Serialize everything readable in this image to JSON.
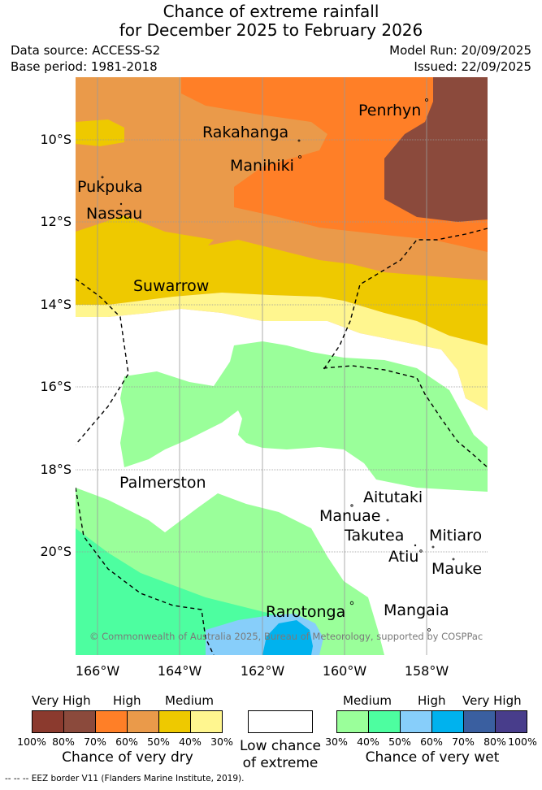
{
  "title": {
    "line1": "Chance of extreme rainfall",
    "line2": "for December 2025 to February 2026"
  },
  "meta": {
    "data_source": "Data source: ACCESS-S2",
    "base_period": "Base period: 1981-2018",
    "model_run": "Model Run: 20/09/2025",
    "issued": "Issued: 22/09/2025"
  },
  "axes": {
    "lat_labels": [
      "10°S",
      "12°S",
      "14°S",
      "16°S",
      "18°S",
      "20°S"
    ],
    "lon_labels": [
      "166°W",
      "164°W",
      "162°W",
      "160°W",
      "158°W"
    ]
  },
  "places": {
    "penrhyn": "Penrhyn",
    "rakahanga": "Rakahanga",
    "manihiki": "Manihiki",
    "pukpuka": "Pukpuka",
    "nassau": "Nassau",
    "suwarrow": "Suwarrow",
    "palmerston": "Palmerston",
    "aitutaki": "Aitutaki",
    "manuae": "Manuae",
    "takutea": "Takutea",
    "mitiaro": "Mitiaro",
    "atiu": "Atiu",
    "mauke": "Mauke",
    "rarotonga": "Rarotonga",
    "mangaia": "Mangaia"
  },
  "copyright": "© Commonwealth of Australia 2025, Bureau of Meteorology, supported by COSPPac",
  "colors": {
    "dry_very_high_1": "#8b3a2e",
    "dry_very_high_2": "#8b4a3c",
    "dry_high_1": "#ff7f27",
    "dry_high_2": "#ea9a4a",
    "dry_medium_1": "#eec900",
    "dry_medium_2": "#fff68f",
    "low": "#ffffff",
    "wet_medium_1": "#9aff9a",
    "wet_medium_2": "#4dfea0",
    "wet_high_1": "#87cefa",
    "wet_high_2": "#00b2ee",
    "wet_very_high_1": "#3a5fa0",
    "wet_very_high_2": "#483d8b"
  },
  "legend": {
    "dry": {
      "very_high": "Very High",
      "high": "High",
      "medium": "Medium",
      "percents": [
        "100%",
        "80%",
        "70%",
        "60%",
        "50%",
        "40%",
        "30%"
      ],
      "caption": "Chance of very dry"
    },
    "low": {
      "caption_line1": "Low chance",
      "caption_line2": "of extreme"
    },
    "wet": {
      "medium": "Medium",
      "high": "High",
      "very_high": "Very High",
      "percents": [
        "30%",
        "40%",
        "50%",
        "60%",
        "70%",
        "80%",
        "100%"
      ],
      "caption": "Chance of very wet"
    }
  },
  "footer": "--  --  -- EEZ border V11 (Flanders Marine Institute, 2019)."
}
